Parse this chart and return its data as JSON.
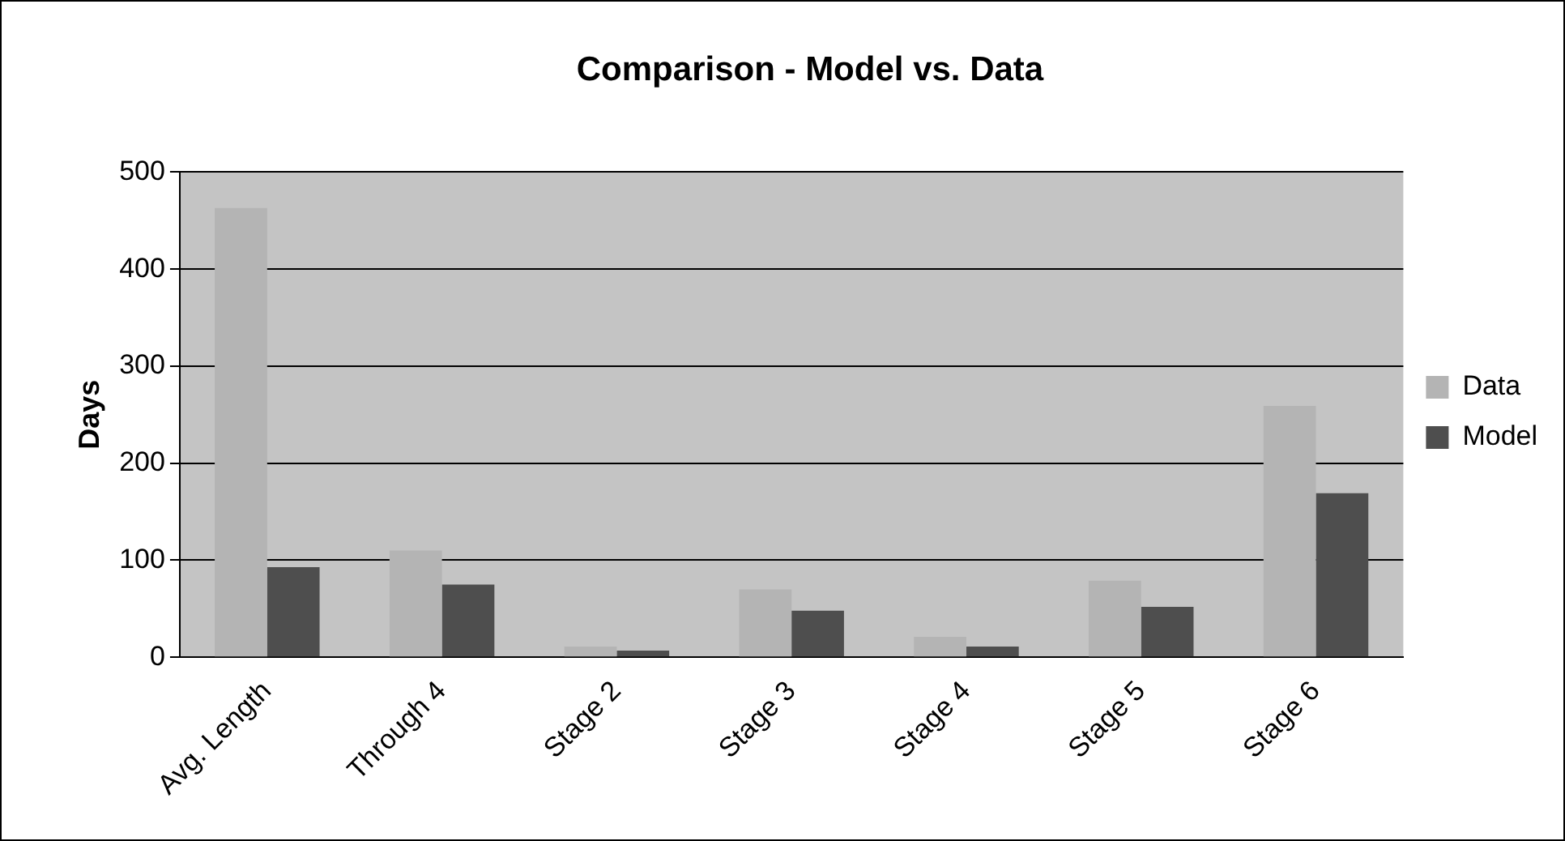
{
  "chart_data": {
    "type": "bar",
    "title": "Comparison - Model vs. Data",
    "ylabel": "Days",
    "categories": [
      "Avg. Length",
      "Through 4",
      "Stage 2",
      "Stage 3",
      "Stage 4",
      "Stage 5",
      "Stage 6"
    ],
    "series": [
      {
        "name": "Data",
        "color": "#b4b4b4",
        "values": [
          463,
          110,
          11,
          70,
          21,
          79,
          259
        ]
      },
      {
        "name": "Model",
        "color": "#4e4e4e",
        "values": [
          93,
          75,
          7,
          48,
          11,
          52,
          169
        ]
      }
    ],
    "ylim": [
      0,
      500
    ],
    "yticks": [
      0,
      100,
      200,
      300,
      400,
      500
    ],
    "grid": "y",
    "legend": "right"
  }
}
